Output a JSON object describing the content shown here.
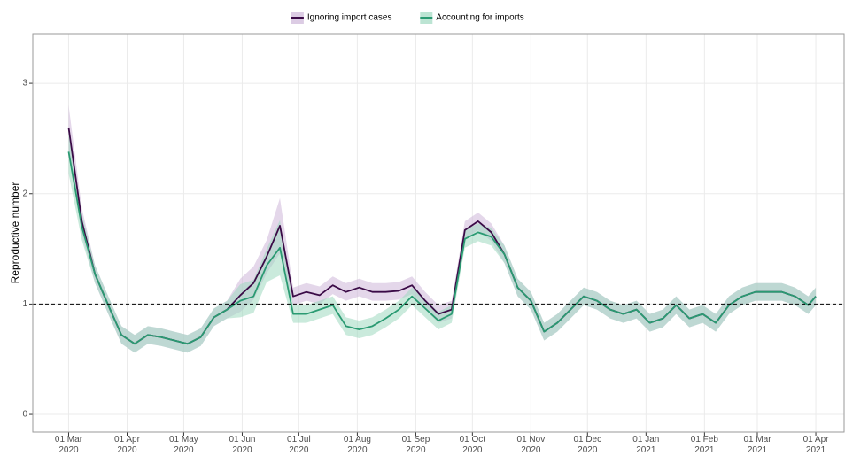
{
  "chart_data": {
    "type": "line",
    "y_label": "Reproductive number",
    "legend": "top",
    "grid": true,
    "hline": 1,
    "ylim": [
      -0.16,
      3.45
    ],
    "yticks": [
      0,
      1,
      2,
      3
    ],
    "xlim": [
      "2020-02-11",
      "2021-04-16"
    ],
    "xticks": [
      {
        "value": "2020-03-01",
        "label": "01 Mar 2020"
      },
      {
        "value": "2020-04-01",
        "label": "01 Apr 2020"
      },
      {
        "value": "2020-05-01",
        "label": "01 May 2020"
      },
      {
        "value": "2020-06-01",
        "label": "01 Jun 2020"
      },
      {
        "value": "2020-07-01",
        "label": "01 Jul 2020"
      },
      {
        "value": "2020-08-01",
        "label": "01 Aug 2020"
      },
      {
        "value": "2020-09-01",
        "label": "01 Sep 2020"
      },
      {
        "value": "2020-10-01",
        "label": "01 Oct 2020"
      },
      {
        "value": "2020-11-01",
        "label": "01 Nov 2020"
      },
      {
        "value": "2020-12-01",
        "label": "01 Dec 2020"
      },
      {
        "value": "2021-01-01",
        "label": "01 Jan 2021"
      },
      {
        "value": "2021-02-01",
        "label": "01 Feb 2021"
      },
      {
        "value": "2021-03-01",
        "label": "01 Mar 2021"
      },
      {
        "value": "2021-04-01",
        "label": "01 Apr 2021"
      }
    ],
    "x": [
      "2020-03-01",
      "2020-03-08",
      "2020-03-15",
      "2020-03-22",
      "2020-03-29",
      "2020-04-05",
      "2020-04-12",
      "2020-04-19",
      "2020-04-26",
      "2020-05-03",
      "2020-05-10",
      "2020-05-17",
      "2020-05-24",
      "2020-05-31",
      "2020-06-07",
      "2020-06-14",
      "2020-06-21",
      "2020-06-28",
      "2020-07-05",
      "2020-07-12",
      "2020-07-19",
      "2020-07-26",
      "2020-08-02",
      "2020-08-09",
      "2020-08-16",
      "2020-08-23",
      "2020-08-30",
      "2020-09-06",
      "2020-09-13",
      "2020-09-20",
      "2020-09-27",
      "2020-10-04",
      "2020-10-11",
      "2020-10-18",
      "2020-10-25",
      "2020-11-01",
      "2020-11-08",
      "2020-11-15",
      "2020-11-22",
      "2020-11-29",
      "2020-12-06",
      "2020-12-13",
      "2020-12-20",
      "2020-12-27",
      "2021-01-03",
      "2021-01-10",
      "2021-01-17",
      "2021-01-24",
      "2021-01-31",
      "2021-02-07",
      "2021-02-14",
      "2021-02-21",
      "2021-02-28",
      "2021-03-07",
      "2021-03-14",
      "2021-03-21",
      "2021-03-28",
      "2021-04-01"
    ],
    "series": [
      {
        "name": "Ignoring import cases",
        "color": "#3b0b47",
        "band_color": "#cdb6d8",
        "values": [
          2.6,
          1.75,
          1.27,
          0.99,
          0.72,
          0.64,
          0.72,
          0.7,
          0.67,
          0.64,
          0.7,
          0.88,
          0.95,
          1.08,
          1.19,
          1.43,
          1.71,
          1.07,
          1.11,
          1.08,
          1.17,
          1.11,
          1.15,
          1.11,
          1.11,
          1.12,
          1.17,
          1.03,
          0.91,
          0.95,
          1.67,
          1.75,
          1.65,
          1.45,
          1.15,
          1.03,
          0.75,
          0.83,
          0.95,
          1.07,
          1.03,
          0.95,
          0.91,
          0.95,
          0.83,
          0.87,
          0.99,
          0.87,
          0.91,
          0.83,
          0.99,
          1.07,
          1.11,
          1.11,
          1.11,
          1.07,
          0.99,
          1.07
        ],
        "lower": [
          2.4,
          1.63,
          1.19,
          0.91,
          0.64,
          0.56,
          0.64,
          0.62,
          0.59,
          0.56,
          0.62,
          0.8,
          0.87,
          0.93,
          1.04,
          1.28,
          1.46,
          0.99,
          1.03,
          1.0,
          1.09,
          1.03,
          1.07,
          1.03,
          1.03,
          1.04,
          1.09,
          0.95,
          0.83,
          0.87,
          1.59,
          1.67,
          1.57,
          1.37,
          1.07,
          0.95,
          0.67,
          0.75,
          0.87,
          0.99,
          0.95,
          0.87,
          0.83,
          0.87,
          0.75,
          0.79,
          0.91,
          0.79,
          0.83,
          0.75,
          0.91,
          0.99,
          1.03,
          1.03,
          1.03,
          0.99,
          0.91,
          0.99
        ],
        "upper": [
          2.8,
          1.87,
          1.35,
          1.07,
          0.8,
          0.72,
          0.8,
          0.78,
          0.75,
          0.72,
          0.78,
          0.96,
          1.03,
          1.23,
          1.34,
          1.58,
          1.96,
          1.15,
          1.19,
          1.16,
          1.25,
          1.19,
          1.23,
          1.19,
          1.19,
          1.2,
          1.25,
          1.11,
          0.99,
          1.03,
          1.75,
          1.83,
          1.73,
          1.53,
          1.23,
          1.11,
          0.83,
          0.91,
          1.03,
          1.15,
          1.11,
          1.03,
          0.99,
          1.03,
          0.91,
          0.95,
          1.07,
          0.95,
          0.99,
          0.91,
          1.07,
          1.15,
          1.19,
          1.19,
          1.19,
          1.15,
          1.07,
          1.15
        ]
      },
      {
        "name": "Accounting for imports",
        "color": "#2a9a72",
        "band_color": "#9fd8c0",
        "values": [
          2.38,
          1.7,
          1.27,
          0.99,
          0.72,
          0.64,
          0.72,
          0.7,
          0.67,
          0.64,
          0.7,
          0.88,
          0.95,
          1.03,
          1.07,
          1.35,
          1.51,
          0.91,
          0.91,
          0.95,
          0.99,
          0.8,
          0.77,
          0.8,
          0.87,
          0.95,
          1.07,
          0.96,
          0.85,
          0.91,
          1.59,
          1.65,
          1.61,
          1.45,
          1.15,
          1.03,
          0.75,
          0.83,
          0.95,
          1.07,
          1.03,
          0.95,
          0.91,
          0.95,
          0.83,
          0.87,
          0.99,
          0.87,
          0.91,
          0.83,
          0.99,
          1.07,
          1.11,
          1.11,
          1.11,
          1.07,
          0.99,
          1.07
        ],
        "lower": [
          2.18,
          1.58,
          1.19,
          0.91,
          0.64,
          0.56,
          0.64,
          0.62,
          0.59,
          0.56,
          0.62,
          0.8,
          0.87,
          0.88,
          0.92,
          1.2,
          1.26,
          0.83,
          0.83,
          0.87,
          0.91,
          0.72,
          0.69,
          0.72,
          0.79,
          0.87,
          0.99,
          0.88,
          0.77,
          0.83,
          1.51,
          1.57,
          1.53,
          1.37,
          1.07,
          0.95,
          0.67,
          0.75,
          0.87,
          0.99,
          0.95,
          0.87,
          0.83,
          0.87,
          0.75,
          0.79,
          0.91,
          0.79,
          0.83,
          0.75,
          0.91,
          0.99,
          1.03,
          1.03,
          1.03,
          0.99,
          0.91,
          0.99
        ],
        "upper": [
          2.58,
          1.82,
          1.35,
          1.07,
          0.8,
          0.72,
          0.8,
          0.78,
          0.75,
          0.72,
          0.78,
          0.96,
          1.03,
          1.18,
          1.22,
          1.5,
          1.76,
          0.99,
          0.99,
          1.03,
          1.07,
          0.88,
          0.85,
          0.88,
          0.95,
          1.03,
          1.15,
          1.04,
          0.93,
          0.99,
          1.67,
          1.73,
          1.69,
          1.53,
          1.23,
          1.11,
          0.83,
          0.91,
          1.03,
          1.15,
          1.11,
          1.03,
          0.99,
          1.03,
          0.91,
          0.95,
          1.07,
          0.95,
          0.99,
          0.91,
          1.07,
          1.15,
          1.19,
          1.19,
          1.19,
          1.15,
          1.07,
          1.15
        ]
      }
    ]
  }
}
